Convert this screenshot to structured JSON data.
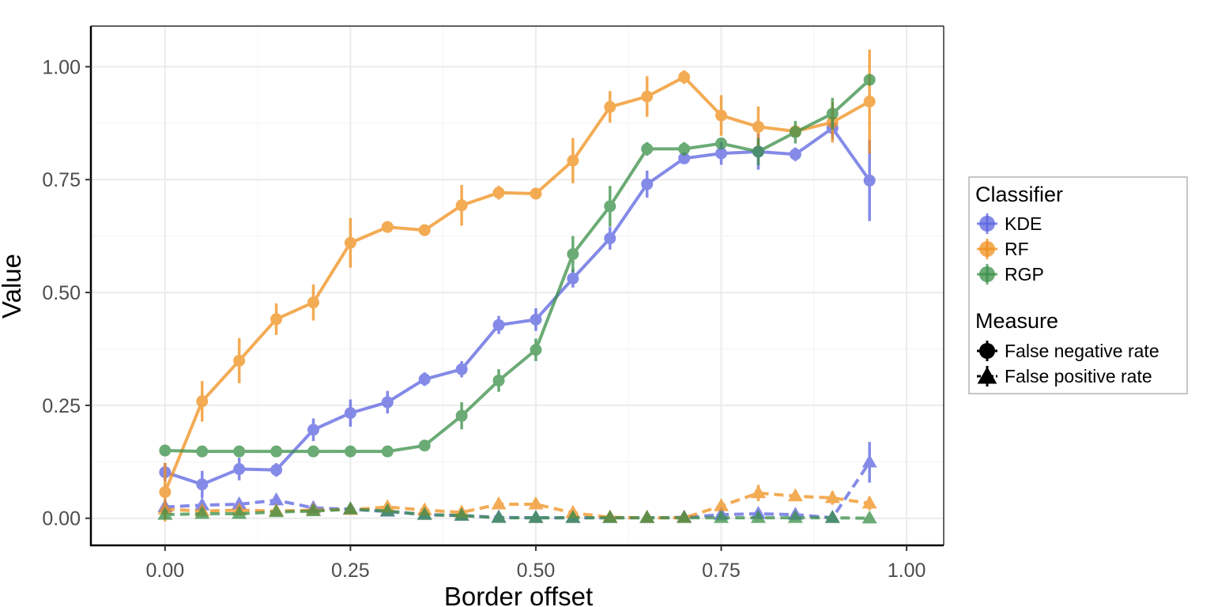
{
  "chart_data": {
    "type": "line",
    "title": "",
    "xlabel": "Border offset",
    "ylabel": "Value",
    "xlim": [
      -0.1,
      1.05
    ],
    "ylim": [
      -0.06,
      1.09
    ],
    "x_ticks": [
      0,
      0.25,
      0.5,
      0.75,
      1
    ],
    "x_tick_labels": [
      "0.00",
      "0.25",
      "0.50",
      "0.75",
      "1.00"
    ],
    "y_ticks": [
      0,
      0.25,
      0.5,
      0.75,
      1
    ],
    "y_tick_labels": [
      "0.00",
      "0.25",
      "0.50",
      "0.75",
      "1.00"
    ],
    "grid": true,
    "x": [
      0,
      0.05,
      0.1,
      0.15,
      0.2,
      0.25,
      0.3,
      0.35,
      0.4,
      0.45,
      0.5,
      0.55,
      0.6,
      0.65,
      0.7,
      0.75,
      0.8,
      0.85,
      0.9,
      0.95
    ],
    "legend": {
      "position": "right",
      "classifier_title": "Classifier",
      "classifier_entries": [
        "KDE",
        "RF",
        "RGP"
      ],
      "measure_title": "Measure",
      "measure_entries": [
        "False negative rate",
        "False positive rate"
      ]
    },
    "colors": {
      "KDE": "#5b63e0",
      "RF": "#f0901c",
      "RGP": "#3a8f48"
    },
    "series": [
      {
        "classifier": "KDE",
        "measure": "False negative rate",
        "values": [
          0.102,
          0.075,
          0.109,
          0.107,
          0.196,
          0.233,
          0.257,
          0.308,
          0.33,
          0.428,
          0.44,
          0.531,
          0.62,
          0.74,
          0.797,
          0.808,
          0.812,
          0.806,
          0.864,
          0.748
        ],
        "errors": [
          0.02,
          0.03,
          0.025,
          0.015,
          0.025,
          0.03,
          0.025,
          0.015,
          0.018,
          0.02,
          0.025,
          0.02,
          0.025,
          0.03,
          0.012,
          0.025,
          0.04,
          0.015,
          0.025,
          0.09
        ]
      },
      {
        "classifier": "RF",
        "measure": "False negative rate",
        "values": [
          0.058,
          0.259,
          0.349,
          0.441,
          0.478,
          0.61,
          0.645,
          0.638,
          0.693,
          0.721,
          0.719,
          0.792,
          0.911,
          0.934,
          0.977,
          0.892,
          0.867,
          0.857,
          0.877,
          0.923
        ],
        "errors": [
          0.065,
          0.045,
          0.05,
          0.035,
          0.04,
          0.055,
          0.01,
          0.01,
          0.045,
          0.015,
          0.012,
          0.05,
          0.035,
          0.045,
          0.015,
          0.045,
          0.045,
          0.01,
          0.045,
          0.115
        ]
      },
      {
        "classifier": "RGP",
        "measure": "False negative rate",
        "values": [
          0.15,
          0.148,
          0.148,
          0.148,
          0.148,
          0.148,
          0.148,
          0.161,
          0.227,
          0.305,
          0.373,
          0.585,
          0.691,
          0.818,
          0.818,
          0.83,
          0.812,
          0.855,
          0.896,
          0.971
        ],
        "errors": [
          0.005,
          0.005,
          0.005,
          0.005,
          0.005,
          0.005,
          0.005,
          0.012,
          0.03,
          0.025,
          0.025,
          0.04,
          0.045,
          0.015,
          0.015,
          0.012,
          0.03,
          0.025,
          0.035,
          0.01
        ]
      },
      {
        "classifier": "KDE",
        "measure": "False positive rate",
        "values": [
          0.025,
          0.029,
          0.031,
          0.04,
          0.023,
          0.02,
          0.015,
          0.008,
          0.006,
          0.002,
          0.001,
          0.001,
          0.001,
          0.001,
          0.002,
          0.008,
          0.01,
          0.008,
          0.001,
          0.124
        ],
        "errors": [
          0.01,
          0.012,
          0.01,
          0.012,
          0.008,
          0.006,
          0.005,
          0.004,
          0.003,
          0.002,
          0.001,
          0.001,
          0.001,
          0.001,
          0.002,
          0.005,
          0.006,
          0.005,
          0.002,
          0.045
        ]
      },
      {
        "classifier": "RF",
        "measure": "False positive rate",
        "values": [
          0.02,
          0.016,
          0.018,
          0.016,
          0.018,
          0.019,
          0.025,
          0.018,
          0.013,
          0.031,
          0.031,
          0.012,
          0.002,
          0.001,
          0.001,
          0.027,
          0.056,
          0.049,
          0.045,
          0.033
        ],
        "errors": [
          0.02,
          0.008,
          0.008,
          0.006,
          0.008,
          0.006,
          0.008,
          0.006,
          0.005,
          0.008,
          0.008,
          0.008,
          0.002,
          0.001,
          0.001,
          0.01,
          0.018,
          0.01,
          0.015,
          0.015
        ]
      },
      {
        "classifier": "RGP",
        "measure": "False positive rate",
        "values": [
          0.008,
          0.01,
          0.01,
          0.014,
          0.016,
          0.02,
          0.016,
          0.008,
          0.006,
          0.001,
          0.001,
          0.001,
          0.001,
          0.001,
          0.001,
          0.001,
          0.001,
          0.001,
          0.001,
          0.0
        ],
        "errors": [
          0.005,
          0.004,
          0.004,
          0.004,
          0.004,
          0.005,
          0.004,
          0.003,
          0.003,
          0.001,
          0.001,
          0.001,
          0.001,
          0.001,
          0.001,
          0.001,
          0.001,
          0.001,
          0.001,
          0.001
        ]
      }
    ]
  }
}
